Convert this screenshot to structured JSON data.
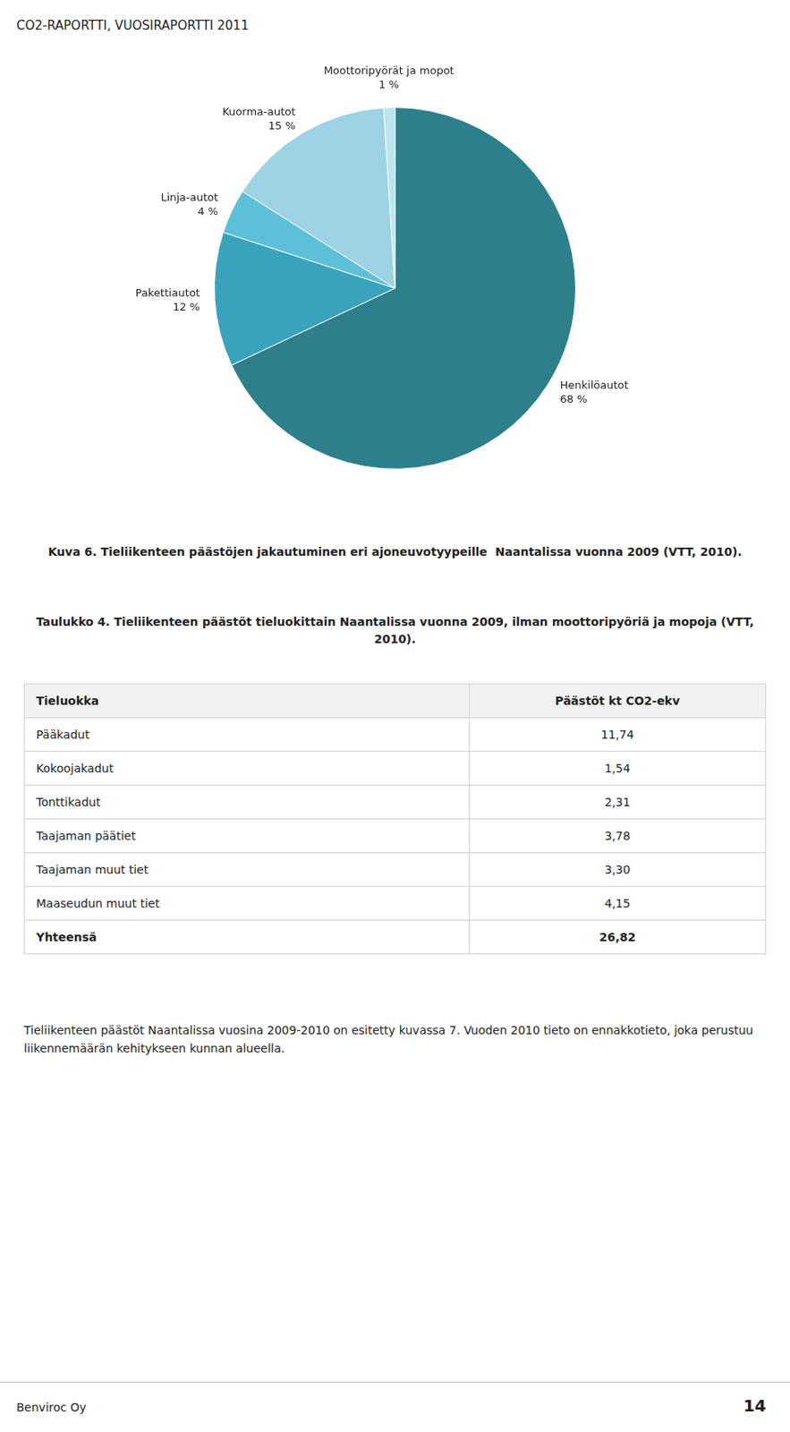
{
  "page_title": "CO2-RAPORTTI, VUOSIRAPORTTI 2011",
  "chart_data": {
    "type": "pie",
    "categories": [
      "Henkilöautot",
      "Pakettiautot",
      "Linja-autot",
      "Kuorma-autot",
      "Moottoripyörät ja mopot"
    ],
    "values": [
      68,
      12,
      4,
      15,
      1
    ],
    "value_labels": [
      "68 %",
      "12 %",
      "4 %",
      "15 %",
      "1 %"
    ],
    "colors": [
      "#2e7f8c",
      "#3aa3bc",
      "#5ec0d8",
      "#9dd3e4",
      "#bce5ef"
    ],
    "data_labels": true
  },
  "caption": "Kuva 6. Tieliikenteen päästöjen jakautuminen eri ajoneuvotyypeille  Naantalissa vuonna 2009 (VTT, 2010).",
  "table": {
    "title": "Taulukko 4. Tieliikenteen päästöt tieluokittain Naantalissa vuonna 2009, ilman moottoripyöriä ja mopoja (VTT, 2010).",
    "columns": [
      "Tieluokka",
      "Päästöt kt CO2-ekv"
    ],
    "rows": [
      [
        "Pääkadut",
        "11,74"
      ],
      [
        "Kokoojakadut",
        "1,54"
      ],
      [
        "Tonttikadut",
        "2,31"
      ],
      [
        "Taajaman päätiet",
        "3,78"
      ],
      [
        "Taajaman muut tiet",
        "3,30"
      ],
      [
        "Maaseudun muut tiet",
        "4,15"
      ],
      [
        "Yhteensä",
        "26,82"
      ]
    ]
  },
  "text": "Tieliikenteen päästöt Naantalissa vuosina 2009-2010 on esitetty kuvassa 7. Vuoden 2010 tieto on ennakkotieto, joka perustuu liikennemäärän kehitykseen kunnan alueella.",
  "footer": {
    "left": "Benviroc Oy",
    "right": "14"
  }
}
